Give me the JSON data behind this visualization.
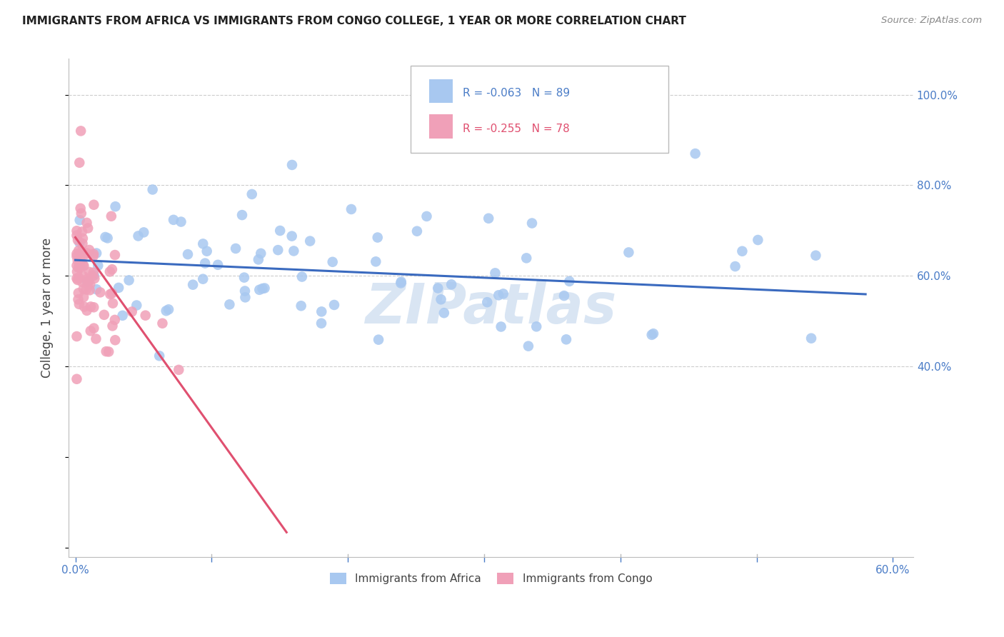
{
  "title": "IMMIGRANTS FROM AFRICA VS IMMIGRANTS FROM CONGO COLLEGE, 1 YEAR OR MORE CORRELATION CHART",
  "source": "Source: ZipAtlas.com",
  "ylabel": "College, 1 year or more",
  "xlim": [
    0.0,
    0.6
  ],
  "ylim": [
    0.0,
    1.05
  ],
  "africa_R": -0.063,
  "africa_N": 89,
  "congo_R": -0.255,
  "congo_N": 78,
  "africa_color": "#a8c8f0",
  "congo_color": "#f0a0b8",
  "africa_line_color": "#3a6abf",
  "congo_line_color": "#e05070",
  "watermark": "ZIPatlas",
  "background_color": "#ffffff",
  "grid_color": "#cccccc",
  "right_tick_color": "#4a7cc7",
  "bottom_tick_color": "#4a7cc7"
}
